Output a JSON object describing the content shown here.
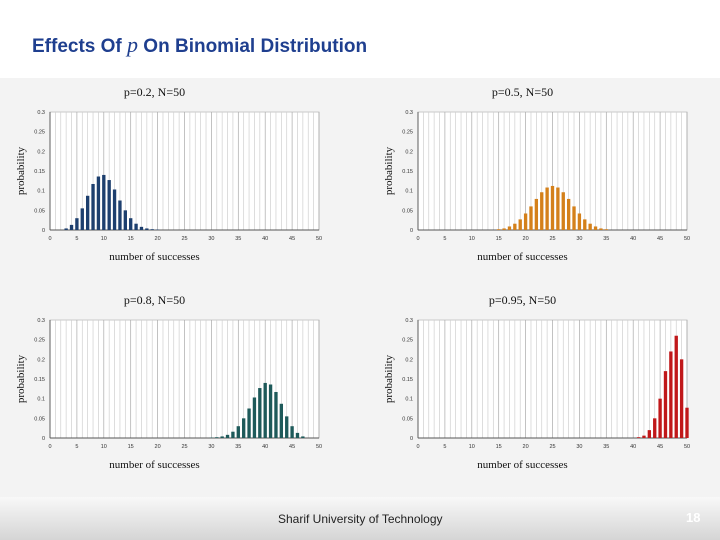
{
  "slide": {
    "title_prefix": "Effects Of ",
    "title_var": "p",
    "title_suffix": " On Binomial Distribution",
    "footer": "Sharif University of Technology",
    "page_number": "18"
  },
  "chart_data": [
    {
      "type": "bar",
      "title": "p=0.2, N=50",
      "xlabel": "number of successes",
      "ylabel": "probability",
      "xlim": [
        0,
        50
      ],
      "ylim": [
        0,
        0.3
      ],
      "xticks": [
        "0",
        "5",
        "10",
        "15",
        "20",
        "25",
        "30",
        "35",
        "40",
        "45",
        "50"
      ],
      "yticks": [
        "0",
        "0.05",
        "0.1",
        "0.15",
        "0.2",
        "0.25",
        "0.3"
      ],
      "grid": true,
      "color": "#1d3f6e",
      "x": [
        3,
        4,
        5,
        6,
        7,
        8,
        9,
        10,
        11,
        12,
        13,
        14,
        15,
        16,
        17,
        18,
        19,
        20
      ],
      "values": [
        0.004,
        0.013,
        0.03,
        0.055,
        0.087,
        0.117,
        0.136,
        0.14,
        0.127,
        0.103,
        0.075,
        0.05,
        0.03,
        0.016,
        0.008,
        0.004,
        0.002,
        0.001
      ]
    },
    {
      "type": "bar",
      "title": "p=0.5, N=50",
      "xlabel": "number of successes",
      "ylabel": "probability",
      "xlim": [
        0,
        50
      ],
      "ylim": [
        0,
        0.3
      ],
      "xticks": [
        "0",
        "5",
        "10",
        "15",
        "20",
        "25",
        "30",
        "35",
        "40",
        "45",
        "50"
      ],
      "yticks": [
        "0",
        "0.05",
        "0.1",
        "0.15",
        "0.2",
        "0.25",
        "0.3"
      ],
      "grid": true,
      "color": "#d4801a",
      "x": [
        15,
        16,
        17,
        18,
        19,
        20,
        21,
        22,
        23,
        24,
        25,
        26,
        27,
        28,
        29,
        30,
        31,
        32,
        33,
        34,
        35
      ],
      "values": [
        0.002,
        0.004,
        0.009,
        0.016,
        0.027,
        0.042,
        0.06,
        0.079,
        0.096,
        0.108,
        0.112,
        0.108,
        0.096,
        0.079,
        0.06,
        0.042,
        0.027,
        0.016,
        0.009,
        0.004,
        0.002
      ]
    },
    {
      "type": "bar",
      "title": "p=0.8, N=50",
      "xlabel": "number of successes",
      "ylabel": "probability",
      "xlim": [
        0,
        50
      ],
      "ylim": [
        0,
        0.3
      ],
      "xticks": [
        "0",
        "5",
        "10",
        "15",
        "20",
        "25",
        "30",
        "35",
        "40",
        "45",
        "50"
      ],
      "yticks": [
        "0",
        "0.05",
        "0.1",
        "0.15",
        "0.2",
        "0.25",
        "0.3"
      ],
      "grid": true,
      "color": "#1e5a5a",
      "x": [
        30,
        31,
        32,
        33,
        34,
        35,
        36,
        37,
        38,
        39,
        40,
        41,
        42,
        43,
        44,
        45,
        46,
        47
      ],
      "values": [
        0.001,
        0.002,
        0.004,
        0.008,
        0.016,
        0.03,
        0.05,
        0.075,
        0.103,
        0.127,
        0.14,
        0.136,
        0.117,
        0.087,
        0.055,
        0.03,
        0.013,
        0.004
      ]
    },
    {
      "type": "bar",
      "title": "p=0.95, N=50",
      "xlabel": "number of successes",
      "ylabel": "probability",
      "xlim": [
        0,
        50
      ],
      "ylim": [
        0,
        0.3
      ],
      "xticks": [
        "0",
        "5",
        "10",
        "15",
        "20",
        "25",
        "30",
        "35",
        "40",
        "45",
        "50"
      ],
      "yticks": [
        "0",
        "0.05",
        "0.1",
        "0.15",
        "0.2",
        "0.25",
        "0.3"
      ],
      "grid": true,
      "color": "#c0181a",
      "x": [
        41,
        42,
        43,
        44,
        45,
        46,
        47,
        48,
        49,
        50
      ],
      "values": [
        0.002,
        0.006,
        0.02,
        0.05,
        0.1,
        0.17,
        0.22,
        0.26,
        0.2,
        0.077
      ]
    }
  ]
}
